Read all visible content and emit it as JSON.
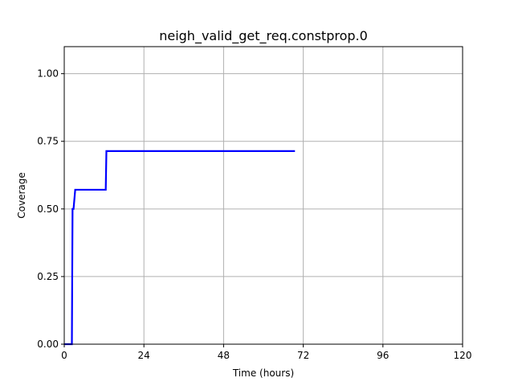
{
  "chart_data": {
    "type": "line",
    "title": "neigh_valid_get_req.constprop.0",
    "xlabel": "Time (hours)",
    "ylabel": "Coverage",
    "xlim": [
      0,
      120
    ],
    "ylim": [
      0,
      1.1
    ],
    "xticks": [
      0,
      24,
      48,
      72,
      96,
      120
    ],
    "yticks": [
      0.0,
      0.25,
      0.5,
      0.75,
      1.0
    ],
    "xtick_labels": [
      "0",
      "24",
      "48",
      "72",
      "96",
      "120"
    ],
    "ytick_labels": [
      "0.00",
      "0.25",
      "0.50",
      "0.75",
      "1.00"
    ],
    "grid": true,
    "series": [
      {
        "color": "#0000ff",
        "x": [
          0,
          2.3,
          2.5,
          2.8,
          3.3,
          12.5,
          12.7,
          69.5
        ],
        "y": [
          0.0,
          0.0,
          0.5,
          0.5,
          0.571,
          0.571,
          0.714,
          0.714
        ]
      }
    ]
  }
}
